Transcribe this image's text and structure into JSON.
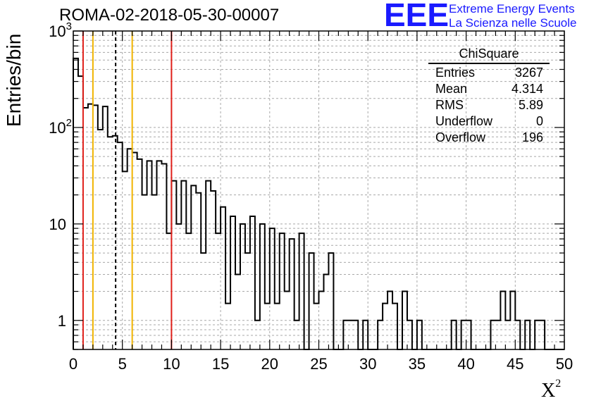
{
  "title": "ROMA-02-2018-05-30-00007",
  "logo": {
    "mark": "EEE",
    "line1": "Extreme Energy Events",
    "line2": "La Scienza nelle Scuole"
  },
  "stats_box": {
    "title": "ChiSquare",
    "rows": [
      {
        "label": "Entries",
        "value": "3267"
      },
      {
        "label": "Mean",
        "value": "4.314"
      },
      {
        "label": "RMS",
        "value": "5.89"
      },
      {
        "label": "Underflow",
        "value": "0"
      },
      {
        "label": "Overflow",
        "value": "196"
      }
    ]
  },
  "chart_data": {
    "type": "bar",
    "histogram_style": "step",
    "xlabel": "X",
    "xlabel_superscript": "2",
    "ylabel": "Entries/bin",
    "xlim": [
      0,
      50
    ],
    "ylim": [
      0.5,
      1000
    ],
    "yscale": "log",
    "grid": true,
    "x_ticks": [
      0,
      5,
      10,
      15,
      20,
      25,
      30,
      35,
      40,
      45,
      50
    ],
    "y_ticks": [
      {
        "value": 1,
        "label": "1"
      },
      {
        "value": 10,
        "label": "10"
      },
      {
        "value": 100,
        "label": "10",
        "exp": "2"
      },
      {
        "value": 1000,
        "label": "10",
        "exp": "3"
      }
    ],
    "bin_width": 0.5,
    "bin_values": [
      520,
      340,
      160,
      175,
      170,
      95,
      165,
      80,
      82,
      70,
      35,
      60,
      55,
      47,
      20,
      45,
      20,
      45,
      42,
      8,
      28,
      10,
      28,
      8,
      25,
      21,
      5,
      28,
      22,
      8,
      15,
      1.5,
      12,
      3,
      10,
      5,
      12,
      1,
      10,
      1.5,
      9,
      1.5,
      8,
      2,
      7,
      1,
      8,
      0.1,
      5,
      1.5,
      2,
      3,
      5,
      0.1,
      0.1,
      1,
      1,
      1,
      0.1,
      1,
      0.1,
      0.1,
      1,
      1.5,
      2,
      1.5,
      0.1,
      2,
      1,
      0.1,
      1,
      0.1,
      0.1,
      0.1,
      0.1,
      0.1,
      0.1,
      1,
      0.1,
      1,
      1,
      0.1,
      0.1,
      0.1,
      0.1,
      1,
      1,
      2,
      1,
      2,
      1,
      0.1,
      1,
      0.1,
      1,
      1,
      0.1,
      0.1,
      0.1,
      0.1
    ],
    "vertical_lines": [
      {
        "x": 1,
        "color": "#e0201a",
        "style": "solid"
      },
      {
        "x": 2,
        "color": "#f0b400",
        "style": "solid"
      },
      {
        "x": 4.314,
        "color": "#000000",
        "style": "dashed"
      },
      {
        "x": 6,
        "color": "#f0b400",
        "style": "solid"
      },
      {
        "x": 10,
        "color": "#e0201a",
        "style": "solid"
      }
    ]
  }
}
